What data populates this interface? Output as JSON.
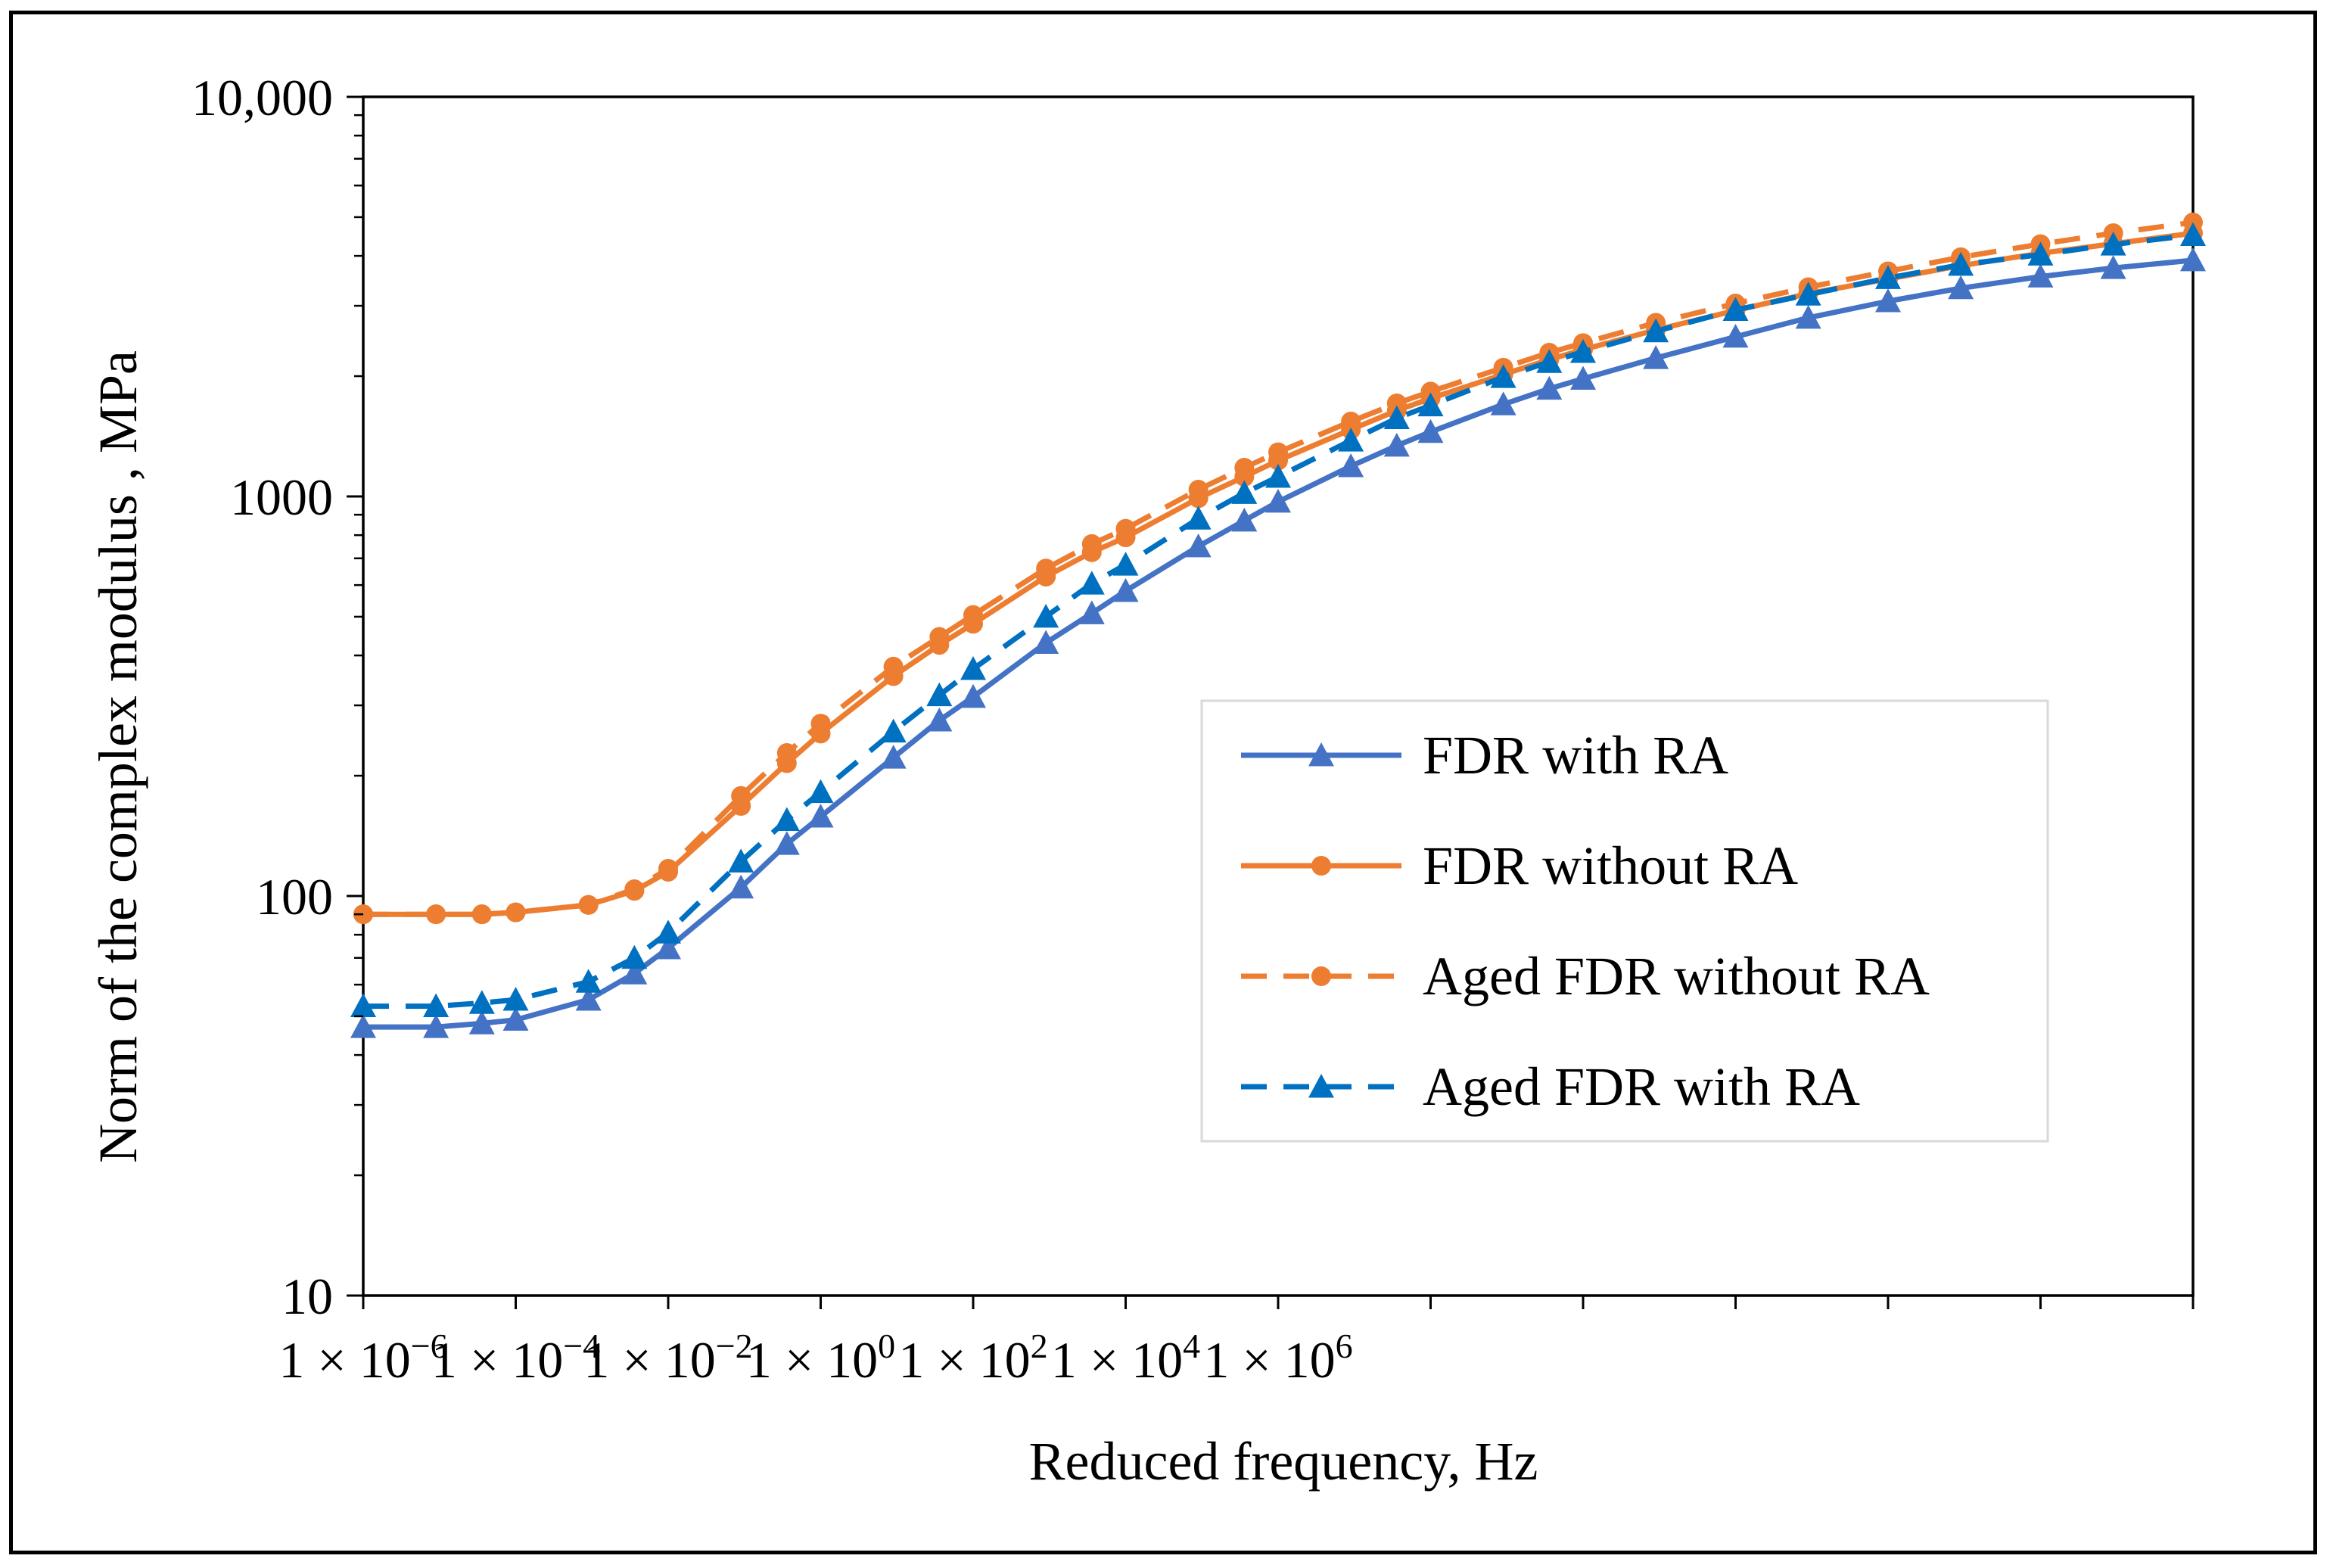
{
  "chart_data": {
    "type": "line",
    "xlabel": "Reduced frequency, Hz",
    "ylabel": "Norm of the complex modulus , MPa",
    "x_scale": "log",
    "y_scale": "log",
    "xlim": [
      1e-06,
      1000000
    ],
    "ylim": [
      10,
      10000
    ],
    "x_tick_labels": [
      {
        "base": "1 × 10",
        "exp": "−6"
      },
      {
        "base": "1 × 10",
        "exp": "−4"
      },
      {
        "base": "1 × 10",
        "exp": "−2"
      },
      {
        "base": "1 × 10",
        "exp": "0"
      },
      {
        "base": "1 × 10",
        "exp": "2"
      },
      {
        "base": "1 × 10",
        "exp": "4"
      },
      {
        "base": "1 × 10",
        "exp": "6"
      }
    ],
    "y_tick_labels": [
      "10",
      "100",
      "1000",
      "10,000"
    ],
    "legend_position": "center-right",
    "grid": false,
    "series": [
      {
        "name": "FDR with RA",
        "color": "#4472C4",
        "line_style": "solid",
        "marker": "triangle",
        "x": [
          1e-06,
          3e-06,
          6e-06,
          1e-05,
          3e-05,
          6e-05,
          0.0001,
          0.0003,
          0.0006,
          0.001,
          0.003,
          0.006,
          0.01,
          0.03,
          0.06,
          0.1,
          0.3,
          0.6,
          1,
          3,
          6,
          10,
          30,
          60,
          100,
          300,
          1000,
          3000,
          10000,
          30000,
          100000,
          300000,
          1000000
        ],
        "values": [
          47,
          47,
          48,
          49,
          55,
          64,
          74,
          105,
          135,
          158,
          222,
          275,
          315,
          430,
          510,
          580,
          750,
          870,
          970,
          1190,
          1340,
          1450,
          1700,
          1860,
          1970,
          2220,
          2510,
          2800,
          3080,
          3320,
          3550,
          3730,
          3900
        ]
      },
      {
        "name": "FDR without RA",
        "color": "#ED7D31",
        "line_style": "solid",
        "marker": "circle",
        "x": [
          1e-06,
          3e-06,
          6e-06,
          1e-05,
          3e-05,
          6e-05,
          0.0001,
          0.0003,
          0.0006,
          0.001,
          0.003,
          0.006,
          0.01,
          0.03,
          0.06,
          0.1,
          0.3,
          0.6,
          1,
          3,
          6,
          10,
          30,
          60,
          100,
          300,
          1000,
          3000,
          10000,
          30000,
          100000,
          300000,
          1000000
        ],
        "values": [
          90,
          90,
          90,
          91,
          95,
          103,
          115,
          168,
          215,
          255,
          355,
          425,
          480,
          630,
          725,
          790,
          990,
          1120,
          1230,
          1470,
          1640,
          1760,
          2020,
          2200,
          2330,
          2610,
          2920,
          3220,
          3500,
          3780,
          4060,
          4290,
          4560
        ]
      },
      {
        "name": "Aged FDR without RA",
        "color": "#ED7D31",
        "line_style": "dashed",
        "marker": "circle",
        "x": [
          1e-06,
          3e-06,
          6e-06,
          1e-05,
          3e-05,
          6e-05,
          0.0001,
          0.0003,
          0.0006,
          0.001,
          0.003,
          0.006,
          0.01,
          0.03,
          0.06,
          0.1,
          0.3,
          0.6,
          1,
          3,
          6,
          10,
          30,
          60,
          100,
          300,
          1000,
          3000,
          10000,
          30000,
          100000,
          300000,
          1000000
        ],
        "values": [
          90,
          90,
          90,
          91,
          95,
          104,
          117,
          178,
          228,
          270,
          375,
          445,
          505,
          660,
          760,
          830,
          1040,
          1180,
          1290,
          1540,
          1710,
          1830,
          2100,
          2290,
          2420,
          2720,
          3040,
          3340,
          3660,
          3970,
          4280,
          4560,
          4850
        ]
      },
      {
        "name": "Aged FDR with RA",
        "color": "#0070C0",
        "line_style": "dashed",
        "marker": "triangle",
        "x": [
          1e-06,
          3e-06,
          6e-06,
          1e-05,
          3e-05,
          6e-05,
          0.0001,
          0.0003,
          0.0006,
          0.001,
          0.003,
          0.006,
          0.01,
          0.03,
          0.06,
          0.1,
          0.3,
          0.6,
          1,
          3,
          6,
          10,
          30,
          60,
          100,
          300,
          1000,
          3000,
          10000,
          30000,
          100000,
          300000,
          1000000
        ],
        "values": [
          53,
          53,
          54,
          55,
          61,
          70,
          81,
          122,
          155,
          182,
          258,
          318,
          370,
          500,
          605,
          675,
          880,
          1020,
          1120,
          1380,
          1570,
          1690,
          1990,
          2170,
          2300,
          2590,
          2930,
          3200,
          3520,
          3800,
          4030,
          4270,
          4510
        ]
      }
    ]
  }
}
